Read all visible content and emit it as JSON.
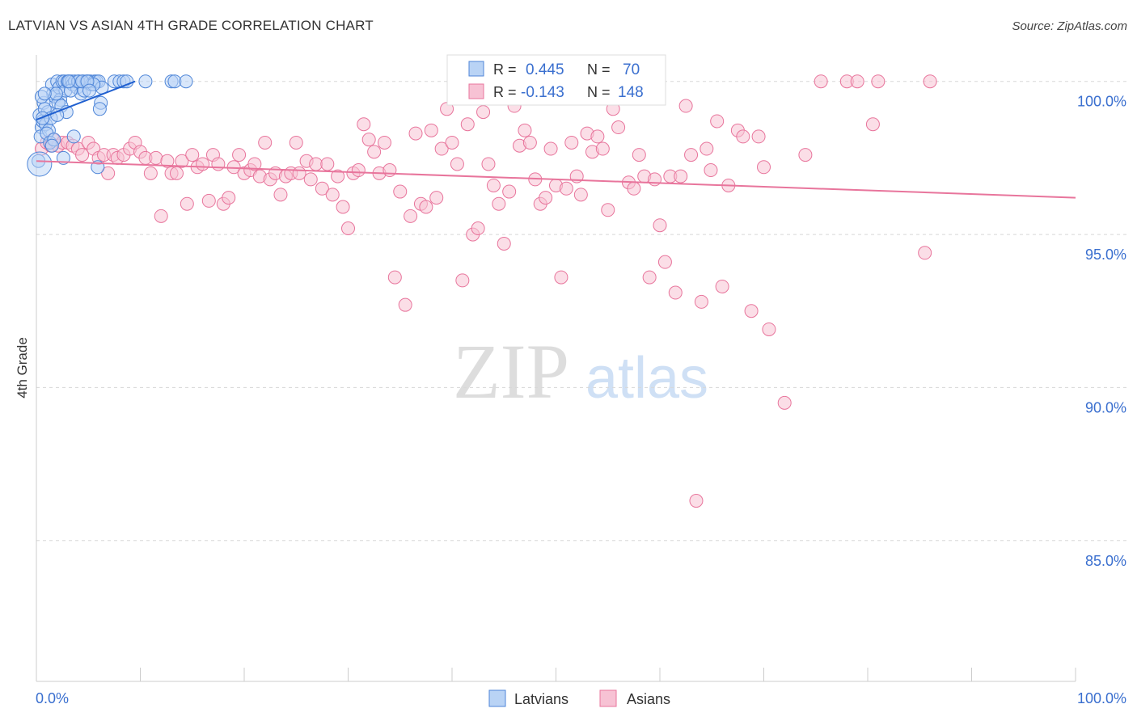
{
  "header": {
    "title": "LATVIAN VS ASIAN 4TH GRADE CORRELATION CHART",
    "source": "Source: ZipAtlas.com"
  },
  "watermark": {
    "zip": "ZIP",
    "atlas": "atlas"
  },
  "colors": {
    "latvians": "#4f86d8",
    "latvians_fill": "#b9d3f5",
    "latvians_line": "#2060d0",
    "asians": "#e8759c",
    "asians_fill": "#f7c2d4",
    "asians_line": "#e8759c",
    "tick_text": "#3a6fcf",
    "grid": "#d8d8d8"
  },
  "legend_box": {
    "latvians": {
      "r_label": "R = ",
      "r_value": "0.445",
      "n_label": "N = ",
      "n_value": "70"
    },
    "asians": {
      "r_label": "R = ",
      "r_value": "-0.143",
      "n_label": "N = ",
      "n_value": "148"
    }
  },
  "chart_data": {
    "type": "scatter",
    "title": "LATVIAN VS ASIAN 4TH GRADE CORRELATION CHART",
    "xlabel": "",
    "ylabel": "4th Grade",
    "xlim": [
      0,
      100
    ],
    "ylim": [
      80.4,
      100.6
    ],
    "x_tick_labels": [
      "0.0%",
      "100.0%"
    ],
    "y_ticks": [
      {
        "value": 100,
        "label": "100.0%"
      },
      {
        "value": 95,
        "label": "95.0%"
      },
      {
        "value": 90,
        "label": "90.0%"
      },
      {
        "value": 85,
        "label": "85.0%"
      }
    ],
    "legend": [
      "Latvians",
      "Asians"
    ],
    "series": [
      {
        "name": "Latvians",
        "r": 0.445,
        "n": 70,
        "trend": {
          "x": [
            0,
            9.5
          ],
          "y": [
            98.75,
            100.0
          ]
        },
        "points": [
          [
            0.3,
            98.9
          ],
          [
            0.5,
            98.5
          ],
          [
            0.4,
            98.2
          ],
          [
            0.7,
            99.3
          ],
          [
            0.6,
            98.7
          ],
          [
            0.9,
            98.6
          ],
          [
            1.1,
            99.0
          ],
          [
            1.2,
            98.4
          ],
          [
            0.8,
            99.1
          ],
          [
            1.4,
            98.8
          ],
          [
            1.6,
            99.6
          ],
          [
            1.5,
            99.9
          ],
          [
            1.8,
            99.5
          ],
          [
            2.0,
            100.0
          ],
          [
            2.2,
            99.8
          ],
          [
            2.3,
            99.4
          ],
          [
            2.5,
            100.0
          ],
          [
            2.7,
            100.0
          ],
          [
            2.8,
            99.7
          ],
          [
            3.0,
            100.0
          ],
          [
            3.2,
            100.0
          ],
          [
            3.4,
            100.0
          ],
          [
            3.5,
            99.9
          ],
          [
            3.7,
            100.0
          ],
          [
            3.9,
            99.8
          ],
          [
            4.1,
            100.0
          ],
          [
            4.3,
            99.6
          ],
          [
            4.5,
            100.0
          ],
          [
            4.6,
            99.7
          ],
          [
            4.8,
            100.0
          ],
          [
            5.0,
            100.0
          ],
          [
            5.2,
            100.0
          ],
          [
            5.3,
            99.9
          ],
          [
            5.6,
            100.0
          ],
          [
            5.8,
            100.0
          ],
          [
            6.0,
            100.0
          ],
          [
            6.2,
            99.3
          ],
          [
            6.3,
            99.8
          ],
          [
            7.5,
            100.0
          ],
          [
            8.0,
            100.0
          ],
          [
            8.4,
            100.0
          ],
          [
            8.7,
            100.0
          ],
          [
            10.5,
            100.0
          ],
          [
            13.0,
            100.0
          ],
          [
            13.3,
            100.0
          ],
          [
            14.4,
            100.0
          ],
          [
            1.0,
            98.3
          ],
          [
            1.3,
            98.0
          ],
          [
            2.1,
            99.3
          ],
          [
            2.4,
            99.2
          ],
          [
            2.9,
            99.0
          ],
          [
            3.3,
            99.7
          ],
          [
            4.0,
            100.0
          ],
          [
            5.9,
            97.2
          ],
          [
            6.1,
            99.1
          ],
          [
            2.6,
            97.5
          ],
          [
            3.6,
            98.2
          ],
          [
            1.7,
            98.1
          ],
          [
            0.5,
            99.5
          ],
          [
            1.9,
            99.6
          ],
          [
            3.1,
            100.0
          ],
          [
            4.4,
            100.0
          ],
          [
            5.5,
            99.9
          ],
          [
            0.8,
            99.6
          ],
          [
            2.0,
            98.9
          ],
          [
            1.5,
            97.9
          ],
          [
            4.9,
            100.0
          ],
          [
            5.1,
            99.7
          ],
          [
            0.6,
            98.8
          ],
          [
            0.2,
            97.4
          ]
        ]
      },
      {
        "name": "Asians",
        "r": -0.143,
        "n": 148,
        "trend": {
          "x": [
            0,
            100
          ],
          "y": [
            97.4,
            96.2
          ]
        },
        "points": [
          [
            0.5,
            97.8
          ],
          [
            1.0,
            98.0
          ],
          [
            1.4,
            97.9
          ],
          [
            1.6,
            98.1
          ],
          [
            2.1,
            97.9
          ],
          [
            2.5,
            98.0
          ],
          [
            3.0,
            98.0
          ],
          [
            3.5,
            97.9
          ],
          [
            4.0,
            97.8
          ],
          [
            4.4,
            97.6
          ],
          [
            5.0,
            98.0
          ],
          [
            5.5,
            97.8
          ],
          [
            6.0,
            97.5
          ],
          [
            6.5,
            97.6
          ],
          [
            6.9,
            97.0
          ],
          [
            7.4,
            97.6
          ],
          [
            7.8,
            97.5
          ],
          [
            8.4,
            97.6
          ],
          [
            9.0,
            97.8
          ],
          [
            9.5,
            98.0
          ],
          [
            10.0,
            97.7
          ],
          [
            10.5,
            97.5
          ],
          [
            11.0,
            97.0
          ],
          [
            11.5,
            97.5
          ],
          [
            12.0,
            95.6
          ],
          [
            12.6,
            97.4
          ],
          [
            13.0,
            97.0
          ],
          [
            13.5,
            97.0
          ],
          [
            14.0,
            97.4
          ],
          [
            14.5,
            96.0
          ],
          [
            15.0,
            97.6
          ],
          [
            15.5,
            97.2
          ],
          [
            16.0,
            97.3
          ],
          [
            16.6,
            96.1
          ],
          [
            17.0,
            97.6
          ],
          [
            17.5,
            97.3
          ],
          [
            18.0,
            96.0
          ],
          [
            18.5,
            96.2
          ],
          [
            19.0,
            97.2
          ],
          [
            19.5,
            97.6
          ],
          [
            20.0,
            97.0
          ],
          [
            20.6,
            97.1
          ],
          [
            21.0,
            97.3
          ],
          [
            21.5,
            96.9
          ],
          [
            22.0,
            98.0
          ],
          [
            22.5,
            96.8
          ],
          [
            23.0,
            97.0
          ],
          [
            23.5,
            96.3
          ],
          [
            24.0,
            96.9
          ],
          [
            24.5,
            97.0
          ],
          [
            25.0,
            98.0
          ],
          [
            25.3,
            97.0
          ],
          [
            26.0,
            97.4
          ],
          [
            26.4,
            96.8
          ],
          [
            26.9,
            97.3
          ],
          [
            27.5,
            96.5
          ],
          [
            28.0,
            97.3
          ],
          [
            28.5,
            96.3
          ],
          [
            29.0,
            96.9
          ],
          [
            29.5,
            95.9
          ],
          [
            30.0,
            95.2
          ],
          [
            30.5,
            97.0
          ],
          [
            31.0,
            97.1
          ],
          [
            31.5,
            98.6
          ],
          [
            32.0,
            98.1
          ],
          [
            32.5,
            97.7
          ],
          [
            33.0,
            97.0
          ],
          [
            33.5,
            98.0
          ],
          [
            34.0,
            97.1
          ],
          [
            34.5,
            93.6
          ],
          [
            35.0,
            96.4
          ],
          [
            35.5,
            92.7
          ],
          [
            36.0,
            95.6
          ],
          [
            36.5,
            98.3
          ],
          [
            37.0,
            96.0
          ],
          [
            37.5,
            95.9
          ],
          [
            38.0,
            98.4
          ],
          [
            38.5,
            96.2
          ],
          [
            39.0,
            97.8
          ],
          [
            39.5,
            99.1
          ],
          [
            40.0,
            98.0
          ],
          [
            40.5,
            97.3
          ],
          [
            41.0,
            93.5
          ],
          [
            41.5,
            98.6
          ],
          [
            42.0,
            95.0
          ],
          [
            42.5,
            95.2
          ],
          [
            43.0,
            99.0
          ],
          [
            43.5,
            97.3
          ],
          [
            44.0,
            96.6
          ],
          [
            44.5,
            96.0
          ],
          [
            45.0,
            94.7
          ],
          [
            45.5,
            96.4
          ],
          [
            46.0,
            99.2
          ],
          [
            46.5,
            97.9
          ],
          [
            47.0,
            98.4
          ],
          [
            47.5,
            98.0
          ],
          [
            48.0,
            96.8
          ],
          [
            48.5,
            96.0
          ],
          [
            49.0,
            96.2
          ],
          [
            49.5,
            97.8
          ],
          [
            50.0,
            96.6
          ],
          [
            50.5,
            93.6
          ],
          [
            51.0,
            96.5
          ],
          [
            51.5,
            98.0
          ],
          [
            52.0,
            96.9
          ],
          [
            52.4,
            96.3
          ],
          [
            53.0,
            98.3
          ],
          [
            53.5,
            97.7
          ],
          [
            54.0,
            98.2
          ],
          [
            54.5,
            97.8
          ],
          [
            55.0,
            95.8
          ],
          [
            55.5,
            99.1
          ],
          [
            56.0,
            98.5
          ],
          [
            57.0,
            96.7
          ],
          [
            57.5,
            96.5
          ],
          [
            58.0,
            97.6
          ],
          [
            58.5,
            96.9
          ],
          [
            59.0,
            93.6
          ],
          [
            59.5,
            96.8
          ],
          [
            60.0,
            95.3
          ],
          [
            60.5,
            94.1
          ],
          [
            61.0,
            96.9
          ],
          [
            61.5,
            93.1
          ],
          [
            62.0,
            96.9
          ],
          [
            62.5,
            99.2
          ],
          [
            63.0,
            97.6
          ],
          [
            64.0,
            92.8
          ],
          [
            64.5,
            97.8
          ],
          [
            64.9,
            97.1
          ],
          [
            65.5,
            98.7
          ],
          [
            66.0,
            93.3
          ],
          [
            66.6,
            96.6
          ],
          [
            67.5,
            98.4
          ],
          [
            68.0,
            98.2
          ],
          [
            68.8,
            92.5
          ],
          [
            69.5,
            98.2
          ],
          [
            70.0,
            97.2
          ],
          [
            70.5,
            91.9
          ],
          [
            72.0,
            89.5
          ],
          [
            74.0,
            97.6
          ],
          [
            75.5,
            100.0
          ],
          [
            78.0,
            100.0
          ],
          [
            79.0,
            100.0
          ],
          [
            80.5,
            98.6
          ],
          [
            81.0,
            100.0
          ],
          [
            86.0,
            100.0
          ],
          [
            85.5,
            94.4
          ],
          [
            63.5,
            86.3
          ]
        ]
      }
    ]
  }
}
